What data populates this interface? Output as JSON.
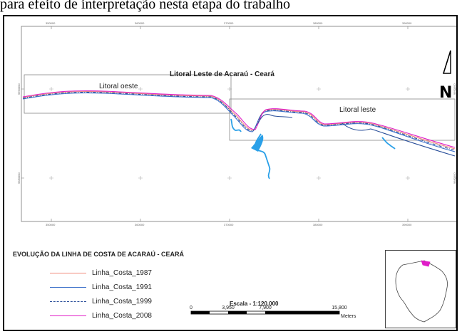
{
  "caption": "para efeito de interpretação nesta etapa do trabalho",
  "map": {
    "title": "Litoral Leste de Acaraú - Ceará",
    "boxes": {
      "west_label": "Litoral oeste",
      "east_label": "Litoral leste"
    },
    "coords": {
      "top": [
        "350000",
        "360000",
        "370000",
        "380000",
        "390000"
      ],
      "bottom": [
        "350000",
        "360000",
        "370000",
        "380000",
        "390000"
      ],
      "left": [
        "9690000",
        "9680000"
      ],
      "right": [
        "9690000",
        "9680000"
      ]
    }
  },
  "north_arrow": {
    "label": "N",
    "icon": "north-arrow-icon"
  },
  "legend": {
    "title": "EVOLUÇÃO DA LINHA DE COSTA DE ACARAÚ - CEARÁ",
    "items": [
      {
        "label": "Linha_Costa_1987",
        "color": "#f08a7a",
        "style": "solid"
      },
      {
        "label": "Linha_Costa_1991",
        "color": "#3a6fc9",
        "style": "solid"
      },
      {
        "label": "Linha_Costa_1999",
        "color": "#2a4f9a",
        "style": "dashdot"
      },
      {
        "label": "Linha_Costa_2008",
        "color": "#e01ec8",
        "style": "solid"
      }
    ]
  },
  "scale_bar": {
    "title": "Escala - 1:120.000",
    "ticks": [
      "0",
      "3,950",
      "7,900",
      "15,800"
    ],
    "unit": "Meters"
  },
  "colors": {
    "river": "#2aa0e8",
    "frame": "#000000",
    "box": "#888888",
    "inset_highlight": "#e01ec8"
  }
}
